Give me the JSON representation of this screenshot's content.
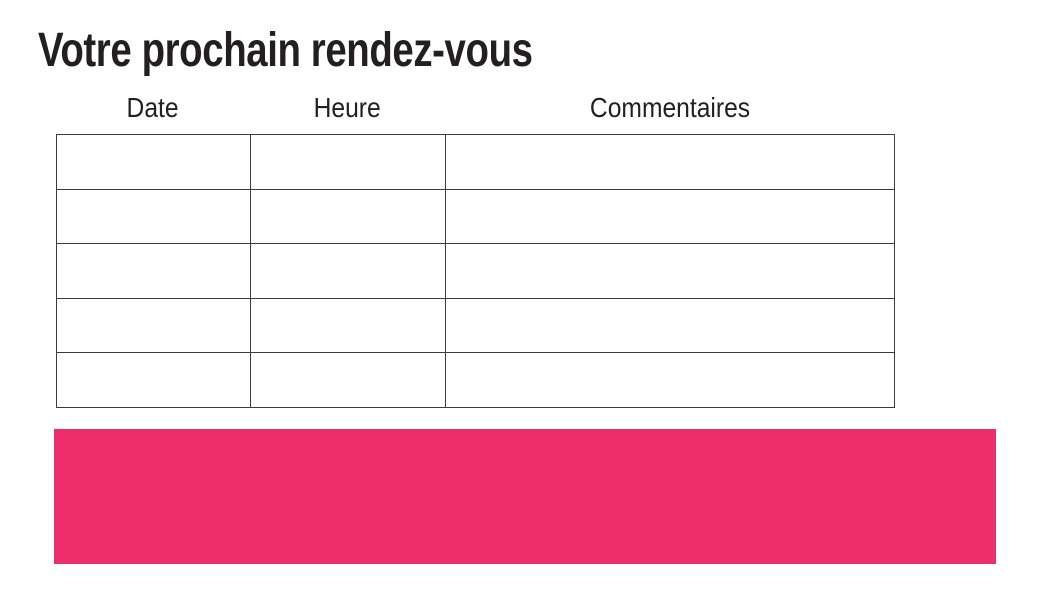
{
  "title": "Votre prochain rendez-vous",
  "table": {
    "columns": [
      {
        "label": "Date"
      },
      {
        "label": "Heure"
      },
      {
        "label": "Commentaires"
      }
    ],
    "rows": [
      {
        "cells": [
          "",
          "",
          ""
        ]
      },
      {
        "cells": [
          "",
          "",
          ""
        ]
      },
      {
        "cells": [
          "",
          "",
          ""
        ]
      },
      {
        "cells": [
          "",
          "",
          ""
        ]
      },
      {
        "cells": [
          "",
          "",
          ""
        ]
      }
    ]
  },
  "banner": {
    "color": "#ed2e6c"
  },
  "colors": {
    "text": "#231f20",
    "border": "#3c3c3c",
    "background": "#ffffff"
  }
}
